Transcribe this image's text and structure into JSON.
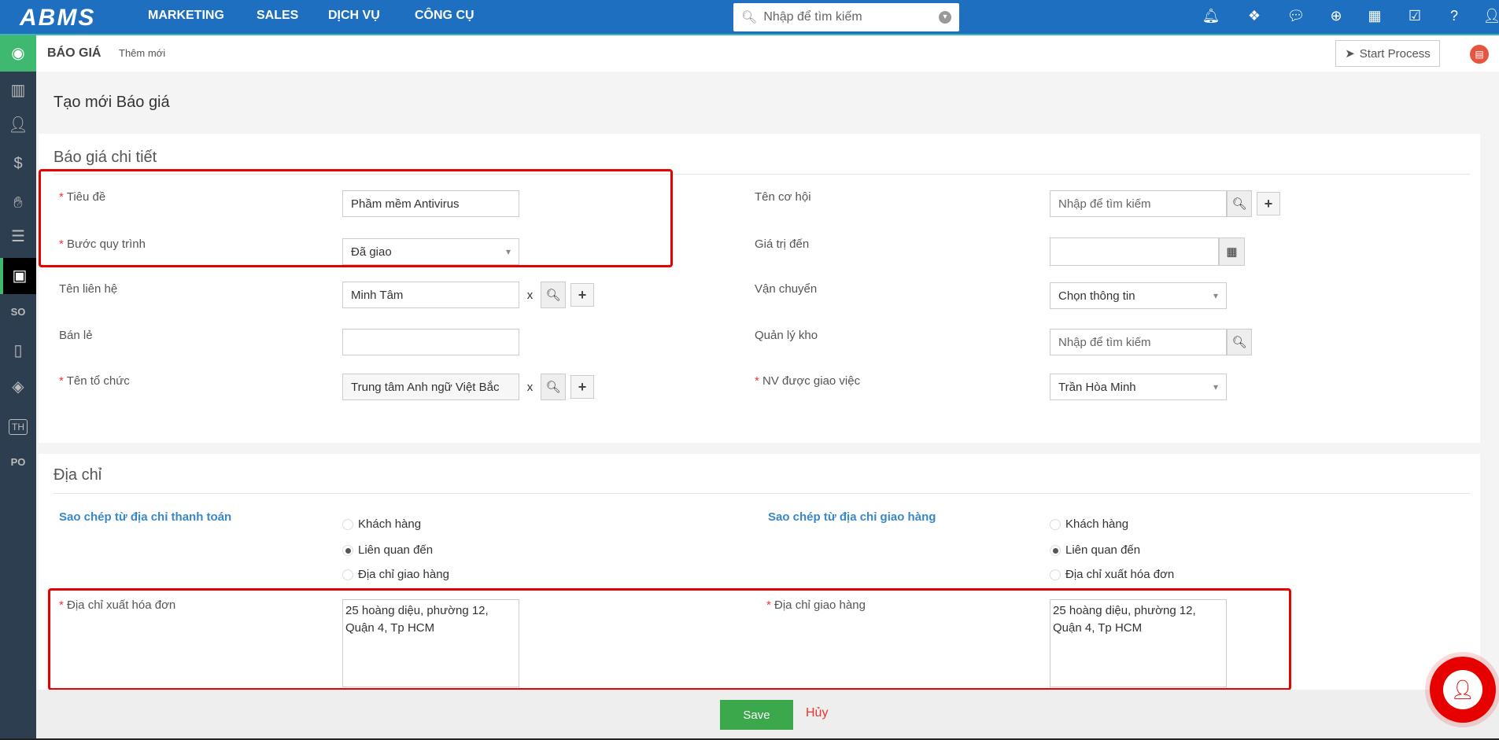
{
  "topbar": {
    "logo": "ABMS",
    "nav": [
      "MARKETING",
      "SALES",
      "DỊCH VỤ",
      "CÔNG CỤ"
    ],
    "search_placeholder": "Nhập để tìm kiếm",
    "icons": [
      "bell-icon",
      "cubes-icon",
      "comments-icon",
      "plus-circle-icon",
      "calendar-icon",
      "checkbox-icon",
      "help-icon",
      "user-icon"
    ]
  },
  "sidebar": {
    "items": [
      {
        "icon": "home-icon",
        "label": ""
      },
      {
        "icon": "building-icon"
      },
      {
        "icon": "contact-icon"
      },
      {
        "icon": "money-bag-icon"
      },
      {
        "icon": "service-icon"
      },
      {
        "icon": "document-icon"
      },
      {
        "icon": "quote-icon",
        "active": true
      },
      {
        "icon": "sales-order-icon",
        "label": "SO"
      },
      {
        "icon": "mobile-chat-icon"
      },
      {
        "icon": "box-icon"
      },
      {
        "icon": "th-icon",
        "label": "TH"
      },
      {
        "icon": "purchase-order-icon",
        "label": "PO"
      }
    ]
  },
  "subheader": {
    "module": "BÁO GIÁ",
    "action": "Thêm mới",
    "start_process": "Start Process"
  },
  "page_title": "Tạo mới Báo giá",
  "details": {
    "title": "Báo giá chi tiết",
    "left": {
      "tieu_de": {
        "label": "Tiêu đề",
        "value": "Phầm mềm Antivirus"
      },
      "buoc_quy_trinh": {
        "label": "Bước quy trình",
        "value": "Đã giao"
      },
      "ten_lien_he": {
        "label": "Tên liên hệ",
        "value": "Minh Tâm"
      },
      "ban_le": {
        "label": "Bán lẻ",
        "value": ""
      },
      "ten_to_chuc": {
        "label": "Tên tổ chức",
        "value": "Trung tâm Anh ngữ Việt Bắc"
      }
    },
    "right": {
      "ten_co_hoi": {
        "label": "Tên cơ hội",
        "placeholder": "Nhập để tìm kiếm"
      },
      "gia_tri_den": {
        "label": "Giá trị đến",
        "value": ""
      },
      "van_chuyen": {
        "label": "Vận chuyển",
        "value": "Chọn thông tin"
      },
      "quan_ly_kho": {
        "label": "Quản lý kho",
        "placeholder": "Nhập để tìm kiếm"
      },
      "nv_giao_viec": {
        "label": "NV được giao việc",
        "value": "Trần Hòa Minh"
      }
    },
    "clear_label": "x"
  },
  "address": {
    "title": "Địa chỉ",
    "copy_billing": "Sao chép từ địa chỉ thanh toán",
    "copy_shipping": "Sao chép từ địa chỉ giao hàng",
    "billing_options": [
      "Khách hàng",
      "Liên quan đến",
      "Địa chỉ giao hàng"
    ],
    "billing_selected": 1,
    "shipping_options": [
      "Khách hàng",
      "Liên quan đến",
      "Địa chỉ xuất hóa đơn"
    ],
    "shipping_selected": 1,
    "billing_label": "Địa chỉ xuất hóa đơn",
    "billing_value": "25 hoàng diệu, phường 12,\nQuận 4, Tp HCM",
    "shipping_label": "Địa chỉ giao hàng",
    "shipping_value": "25 hoàng diệu, phường 12,\nQuận 4, Tp HCM"
  },
  "footer": {
    "save": "Save",
    "cancel": "Hủy"
  },
  "colors": {
    "topbar": "#1e6fbf",
    "sidebar": "#2c3e50",
    "accent_green": "#3fb970",
    "save": "#3aa84b",
    "highlight": "#e60000",
    "link": "#3a87c8"
  }
}
